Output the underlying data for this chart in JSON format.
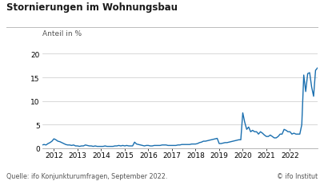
{
  "title": "Stornierungen im Wohnungsbau",
  "ylabel": "Anteil in %",
  "source": "Quelle: ifo Konjunkturumfragen, September 2022.",
  "copyright": "© ifo Institut",
  "ylim": [
    0,
    20
  ],
  "yticks": [
    0,
    5,
    10,
    15,
    20
  ],
  "line_color": "#1a6faf",
  "line_width": 1.0,
  "background_color": "#ffffff",
  "title_fontsize": 8.5,
  "label_fontsize": 6.5,
  "tick_fontsize": 6.5,
  "source_fontsize": 5.8,
  "values": [
    0.7,
    0.8,
    0.7,
    1.0,
    1.2,
    1.5,
    2.0,
    1.8,
    1.5,
    1.4,
    1.2,
    1.0,
    0.8,
    0.7,
    0.7,
    0.6,
    0.7,
    0.5,
    0.5,
    0.4,
    0.5,
    0.5,
    0.7,
    0.6,
    0.5,
    0.5,
    0.4,
    0.5,
    0.4,
    0.4,
    0.4,
    0.4,
    0.5,
    0.4,
    0.4,
    0.4,
    0.4,
    0.5,
    0.5,
    0.6,
    0.5,
    0.6,
    0.5,
    0.6,
    0.5,
    0.5,
    0.5,
    1.3,
    0.9,
    0.8,
    0.7,
    0.6,
    0.5,
    0.6,
    0.6,
    0.5,
    0.5,
    0.6,
    0.6,
    0.6,
    0.6,
    0.7,
    0.7,
    0.7,
    0.6,
    0.6,
    0.6,
    0.6,
    0.6,
    0.7,
    0.7,
    0.8,
    0.8,
    0.8,
    0.8,
    0.8,
    0.9,
    0.9,
    0.9,
    1.0,
    1.2,
    1.3,
    1.5,
    1.5,
    1.6,
    1.7,
    1.8,
    1.9,
    2.0,
    2.1,
    1.0,
    1.0,
    1.1,
    1.2,
    1.2,
    1.3,
    1.4,
    1.5,
    1.6,
    1.7,
    1.8,
    1.8,
    7.5,
    5.5,
    4.0,
    4.5,
    3.5,
    3.8,
    3.5,
    3.5,
    3.0,
    3.5,
    3.2,
    2.8,
    2.5,
    2.5,
    2.8,
    2.5,
    2.2,
    2.2,
    2.5,
    3.0,
    3.0,
    4.0,
    3.8,
    3.5,
    3.5,
    3.0,
    3.2,
    3.0,
    3.0,
    3.0,
    5.0,
    15.5,
    12.0,
    15.8,
    16.0,
    13.0,
    11.0,
    16.5,
    17.0
  ],
  "xtick_labels": [
    "2012",
    "2013",
    "2014",
    "2015",
    "2016",
    "2017",
    "2018",
    "2019",
    "2020",
    "2021",
    "2022"
  ],
  "xtick_positions": [
    6,
    18,
    30,
    42,
    54,
    66,
    78,
    90,
    102,
    114,
    126
  ]
}
